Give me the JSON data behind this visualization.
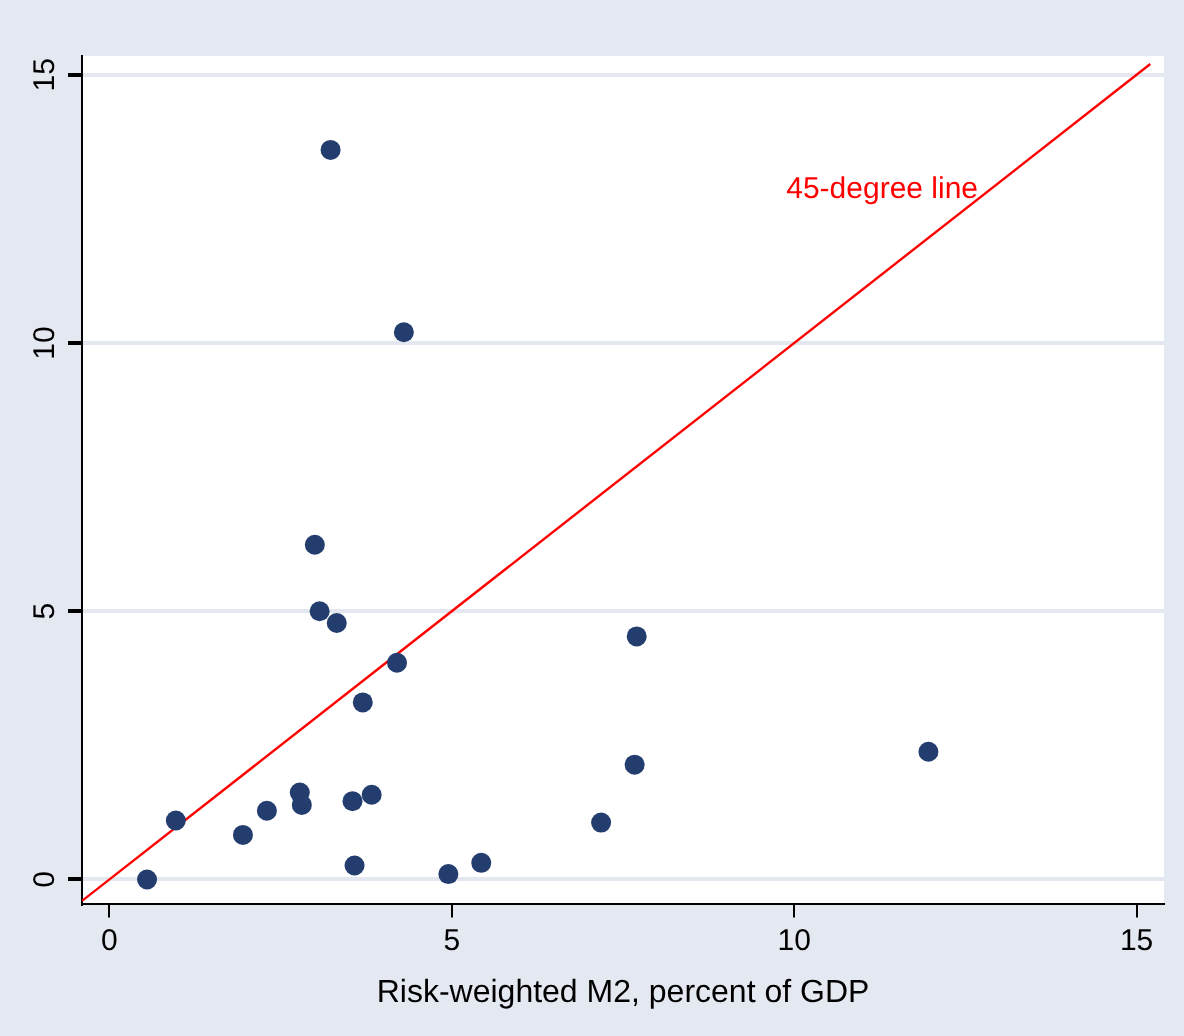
{
  "chart_data": {
    "type": "scatter",
    "xlabel": "Risk-weighted M2, percent of GDP",
    "xlim": [
      -0.4,
      15.4
    ],
    "xticks": [
      0,
      5,
      10,
      15
    ],
    "ylim": [
      -0.45,
      15.35
    ],
    "yticks": [
      0,
      5,
      10,
      15
    ],
    "grid": "y",
    "legend": false,
    "marker": "circle",
    "series": [
      {
        "color": "#233d6e",
        "x": [
          0.55,
          0.97,
          1.95,
          2.3,
          2.78,
          2.81,
          3.07,
          3.32,
          3.55,
          3.58,
          3.7,
          3.83,
          4.2,
          4.95,
          5.43,
          3.0,
          3.23,
          4.3,
          7.7,
          7.67,
          7.18,
          11.96
        ],
        "values": [
          0.0,
          1.1,
          0.83,
          1.28,
          1.62,
          1.39,
          5.0,
          4.78,
          1.46,
          0.26,
          3.3,
          1.58,
          4.04,
          0.1,
          0.31,
          6.24,
          13.6,
          10.2,
          4.53,
          2.14,
          1.06,
          2.38
        ]
      },
      {
        "type": "line",
        "name": "45-degree line",
        "color": "#ff0000",
        "x": [
          -0.4,
          15.2
        ],
        "values": [
          -0.4,
          15.2
        ],
        "marker": "none"
      }
    ]
  }
}
